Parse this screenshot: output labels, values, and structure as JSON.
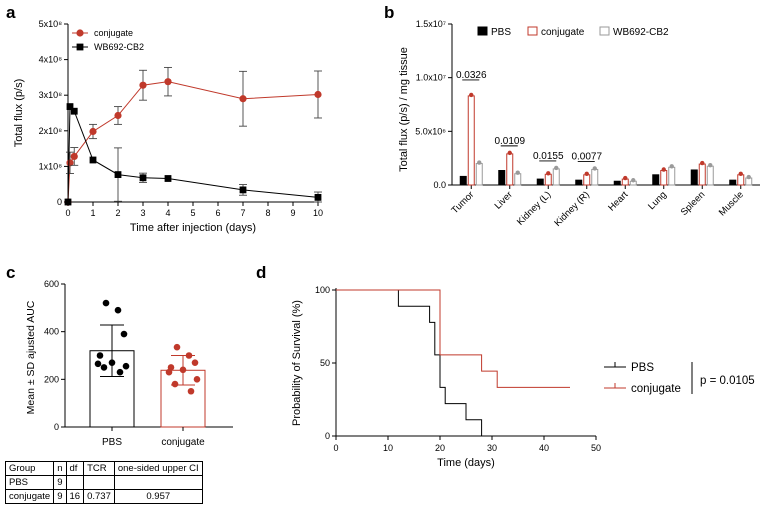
{
  "colors": {
    "conjugate": "#c0392b",
    "pbs": "#000000",
    "wb": "#9a9a9a",
    "survival_conjugate": "#c0392b"
  },
  "panel_a": {
    "label": "a",
    "chart_data": {
      "type": "line",
      "ylabel": "Total flux (p/s)",
      "xlabel": "Time after injection (days)",
      "yticks": [
        "0",
        "1x10⁸",
        "2x10⁸",
        "3x10⁸",
        "4x10⁸",
        "5x10⁸"
      ],
      "ylim": [
        0,
        5
      ],
      "xticks": [
        "0",
        "1",
        "2",
        "3",
        "4",
        "5",
        "6",
        "7",
        "8",
        "9",
        "10"
      ],
      "xlim": [
        0,
        10
      ],
      "series": [
        {
          "name": "conjugate",
          "x": [
            0,
            0.08,
            0.25,
            1,
            2,
            3,
            4,
            7,
            10
          ],
          "y": [
            0,
            1.1,
            1.28,
            1.98,
            2.43,
            3.28,
            3.38,
            2.9,
            3.02
          ],
          "err": [
            0,
            0.3,
            0.25,
            0.2,
            0.25,
            0.42,
            0.4,
            0.77,
            0.66
          ]
        },
        {
          "name": "WB692-CB2",
          "x": [
            0,
            0.08,
            0.25,
            1,
            2,
            3,
            4,
            7,
            10
          ],
          "y": [
            0,
            2.68,
            2.55,
            1.18,
            0.77,
            0.68,
            0.66,
            0.34,
            0.13
          ],
          "err": [
            0,
            0,
            0,
            0,
            0.75,
            0.13,
            0,
            0.15,
            0.15
          ]
        }
      ]
    }
  },
  "panel_b": {
    "label": "b",
    "chart_data": {
      "type": "bar",
      "ylabel": "Total flux (p/s) / mg tissue",
      "yticks": [
        "0.0",
        "5.0x10⁶",
        "1.0x10⁷",
        "1.5x10⁷"
      ],
      "ylim": [
        0,
        15
      ],
      "categories": [
        "Tumor",
        "Liver",
        "Kidney (L)",
        "Kidney (R)",
        "Heart",
        "Lung",
        "Spleen",
        "Muscle"
      ],
      "series": [
        {
          "name": "PBS",
          "values": [
            0.8,
            1.35,
            0.55,
            0.45,
            0.35,
            0.95,
            1.4,
            0.45
          ]
        },
        {
          "name": "conjugate",
          "values": [
            8.3,
            2.9,
            1.0,
            0.95,
            0.55,
            1.35,
            1.95,
            0.95
          ]
        },
        {
          "name": "WB692-CB2",
          "values": [
            2.0,
            1.05,
            1.5,
            1.45,
            0.35,
            1.65,
            1.75,
            0.65
          ]
        }
      ],
      "annotations": [
        {
          "text": "0.0326",
          "category": "Tumor"
        },
        {
          "text": "0.0109",
          "category": "Liver"
        },
        {
          "text": "0.0155",
          "category": "Kidney (L)"
        },
        {
          "text": "0.0077",
          "category": "Kidney (R)"
        }
      ]
    }
  },
  "panel_c": {
    "label": "c",
    "chart_data": {
      "type": "bar",
      "ylabel": "Mean ± SD ajusted AUC",
      "yticks": [
        "0",
        "200",
        "400",
        "600"
      ],
      "ylim": [
        0,
        600
      ],
      "categories": [
        "PBS",
        "conjugate"
      ],
      "values": [
        320,
        238
      ],
      "sd": [
        108,
        62
      ],
      "points": [
        [
          520,
          490,
          390,
          300,
          270,
          265,
          255,
          250,
          230
        ],
        [
          335,
          300,
          270,
          250,
          240,
          230,
          200,
          180,
          150
        ]
      ]
    },
    "table": {
      "headers": [
        "Group",
        "n",
        "df",
        "TCR",
        "one-sided upper CI"
      ],
      "rows": [
        [
          "PBS",
          "9",
          "",
          "",
          ""
        ],
        [
          "conjugate",
          "9",
          "16",
          "0.737",
          "0.957"
        ]
      ]
    }
  },
  "panel_d": {
    "label": "d",
    "chart_data": {
      "type": "line",
      "ylabel": "Probability of Survival (%)",
      "xlabel": "Time (days)",
      "yticks": [
        "0",
        "50",
        "100"
      ],
      "ylim": [
        0,
        100
      ],
      "xticks": [
        "0",
        "10",
        "20",
        "30",
        "40",
        "50"
      ],
      "xlim": [
        0,
        50
      ],
      "series": [
        {
          "name": "PBS",
          "steps": [
            [
              0,
              100
            ],
            [
              12,
              100
            ],
            [
              12,
              88.9
            ],
            [
              18,
              88.9
            ],
            [
              18,
              77.8
            ],
            [
              19,
              77.8
            ],
            [
              19,
              55.6
            ],
            [
              20,
              55.6
            ],
            [
              20,
              33.3
            ],
            [
              21,
              33.3
            ],
            [
              21,
              22.2
            ],
            [
              25,
              22.2
            ],
            [
              25,
              11.1
            ],
            [
              28,
              11.1
            ],
            [
              28,
              0
            ]
          ]
        },
        {
          "name": "conjugate",
          "steps": [
            [
              0,
              100
            ],
            [
              20,
              100
            ],
            [
              20,
              55.6
            ],
            [
              28,
              55.6
            ],
            [
              28,
              44.4
            ],
            [
              31,
              44.4
            ],
            [
              31,
              33.3
            ],
            [
              45,
              33.3
            ]
          ]
        }
      ],
      "pvalue": "p = 0.0105"
    }
  }
}
